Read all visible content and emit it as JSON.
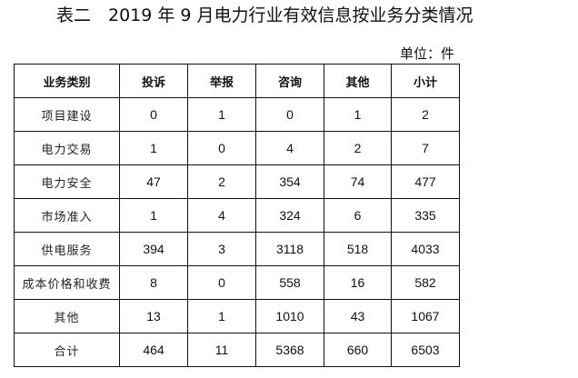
{
  "title": "表二　2019 年 9 月电力行业有效信息按业务分类情况",
  "unit": "单位：件",
  "table": {
    "headers": [
      "业务类别",
      "投诉",
      "举报",
      "咨询",
      "其他",
      "小计"
    ],
    "rows": [
      [
        "项目建设",
        "0",
        "1",
        "0",
        "1",
        "2"
      ],
      [
        "电力交易",
        "1",
        "0",
        "4",
        "2",
        "7"
      ],
      [
        "电力安全",
        "47",
        "2",
        "354",
        "74",
        "477"
      ],
      [
        "市场准入",
        "1",
        "4",
        "324",
        "6",
        "335"
      ],
      [
        "供电服务",
        "394",
        "3",
        "3118",
        "518",
        "4033"
      ],
      [
        "成本价格和收费",
        "8",
        "0",
        "558",
        "16",
        "582"
      ],
      [
        "其他",
        "13",
        "1",
        "1010",
        "43",
        "1067"
      ],
      [
        "合计",
        "464",
        "11",
        "5368",
        "660",
        "6503"
      ]
    ]
  }
}
